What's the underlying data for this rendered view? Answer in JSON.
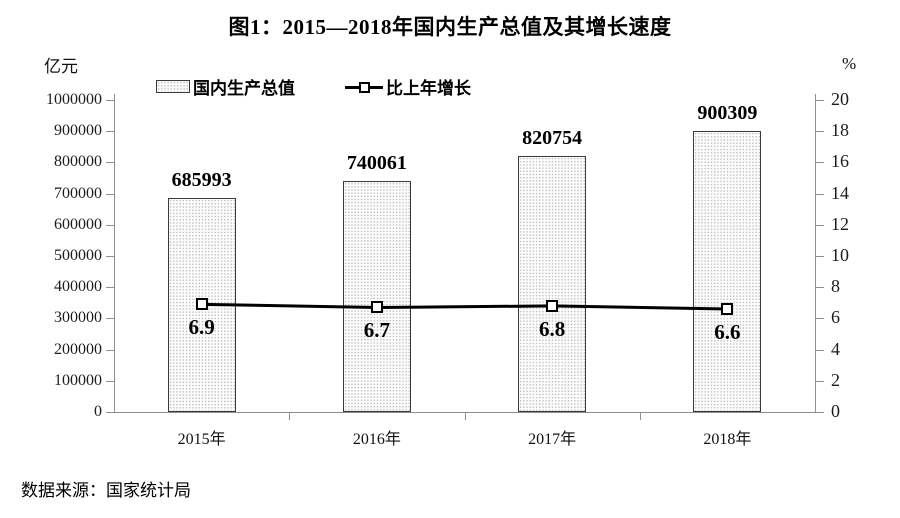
{
  "title": "图1：2015—2018年国内生产总值及其增长速度",
  "source": "数据来源：国家统计局",
  "legend": [
    {
      "label": "国内生产总值",
      "swatch": "stippled-bar"
    },
    {
      "label": "比上年增长",
      "swatch": "line-with-square-marker"
    }
  ],
  "left_axis": {
    "unit": "亿元",
    "min": 0,
    "max": 1000000,
    "step": 100000,
    "ticks": [
      "0",
      "100000",
      "200000",
      "300000",
      "400000",
      "500000",
      "600000",
      "700000",
      "800000",
      "900000",
      "1000000"
    ]
  },
  "right_axis": {
    "unit": "%",
    "min": 0,
    "max": 20,
    "step": 2,
    "ticks": [
      "0",
      "2",
      "4",
      "6",
      "8",
      "10",
      "12",
      "14",
      "16",
      "18",
      "20"
    ]
  },
  "chart_data": {
    "type": "bar",
    "title": "图1：2015—2018年国内生产总值及其增长速度",
    "categories": [
      "2015年",
      "2016年",
      "2017年",
      "2018年"
    ],
    "series": [
      {
        "name": "国内生产总值",
        "type": "bar",
        "axis": "left",
        "unit": "亿元",
        "values": [
          685993,
          740061,
          820754,
          900309
        ]
      },
      {
        "name": "比上年增长",
        "type": "line",
        "axis": "right",
        "unit": "%",
        "values": [
          6.9,
          6.7,
          6.8,
          6.6
        ]
      }
    ],
    "left_ylim": [
      0,
      1000000
    ],
    "right_ylim": [
      0,
      20
    ],
    "grid": false,
    "legend_position": "top-left"
  },
  "colors": {
    "axis": "#8f8f8f",
    "text": "#000000",
    "line": "#000000",
    "marker_fill": "#ffffff",
    "bar_border": "#3a3a3a",
    "bar_fill_dot": "#bdbdbd"
  }
}
